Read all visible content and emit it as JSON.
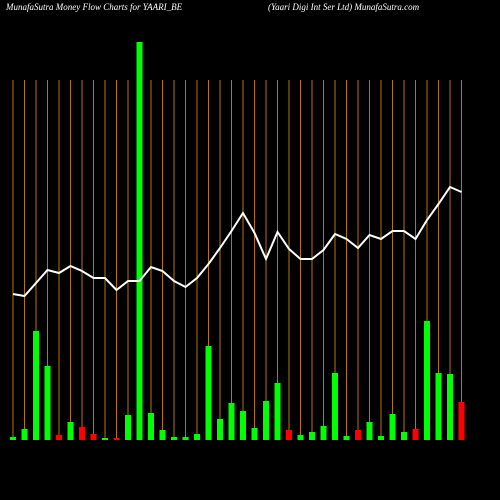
{
  "chart_data": {
    "type": "money-flow",
    "title": "MunafaSutra  Money Flow  Charts for YAARI_BE",
    "subtitle": "(Yaari   Digi   Int Ser Ltd) MunafaSutra.com",
    "ylim": [
      0,
      400
    ],
    "grid": true,
    "grid_color": "#b8730b",
    "series": [
      {
        "type": "bar",
        "values": [
          3,
          11,
          109,
          74,
          5,
          18,
          13,
          6,
          2,
          2,
          25,
          398,
          27,
          10,
          3,
          3,
          6,
          94,
          21,
          37,
          29,
          12,
          39,
          57,
          10,
          5,
          8,
          14,
          67,
          4,
          10,
          18,
          4,
          26,
          8,
          11,
          119,
          67,
          66,
          38
        ],
        "colors": [
          "#00ff00",
          "#00ff00",
          "#00ff00",
          "#00ff00",
          "#ff0000",
          "#00ff00",
          "#ff0000",
          "#ff0000",
          "#00ff00",
          "#ff0000",
          "#00ff00",
          "#00ff00",
          "#00ff00",
          "#00ff00",
          "#00ff00",
          "#00ff00",
          "#00ff00",
          "#00ff00",
          "#00ff00",
          "#00ff00",
          "#00ff00",
          "#00ff00",
          "#00ff00",
          "#00ff00",
          "#ff0000",
          "#00ff00",
          "#00ff00",
          "#00ff00",
          "#00ff00",
          "#00ff00",
          "#ff0000",
          "#00ff00",
          "#00ff00",
          "#00ff00",
          "#00ff00",
          "#ff0000",
          "#00ff00",
          "#00ff00",
          "#00ff00",
          "#ff0000"
        ]
      },
      {
        "type": "line",
        "color": "#ffffff",
        "values": [
          146,
          144,
          157,
          170,
          167,
          174,
          169,
          162,
          162,
          150,
          159,
          159,
          173,
          169,
          159,
          153,
          162,
          176,
          192,
          209,
          227,
          207,
          181,
          208,
          191,
          181,
          181,
          190,
          206,
          201,
          192,
          205,
          201,
          209,
          209,
          201,
          220,
          236,
          253,
          248
        ]
      }
    ],
    "categories": [
      null,
      null,
      null,
      null,
      null,
      null,
      null,
      null,
      null,
      null,
      null,
      null,
      null,
      null,
      null,
      null,
      null,
      null,
      null,
      null,
      null,
      null,
      null,
      null,
      null,
      null,
      null,
      null,
      null,
      null,
      null,
      null,
      null,
      null,
      null,
      null,
      null,
      null,
      null,
      null
    ]
  }
}
